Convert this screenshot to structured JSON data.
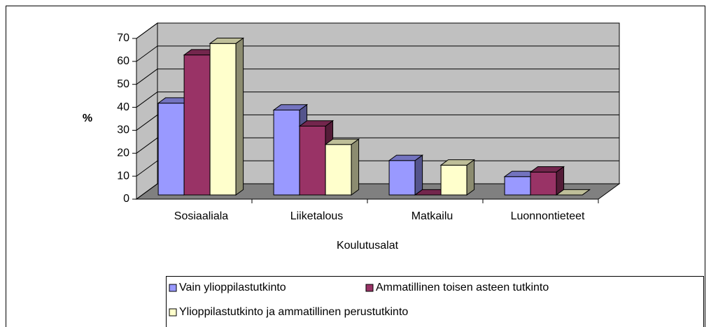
{
  "chart_data": {
    "type": "bar",
    "xlabel": "Koulutusalat",
    "ylabel": "%",
    "categories": [
      "Sosiaaliala",
      "Liiketalous",
      "Matkailu",
      "Luonnontieteet"
    ],
    "series": [
      {
        "name": "Vain ylioppilastutkinto",
        "color": "#9999ff",
        "values": [
          40,
          37,
          15,
          8
        ]
      },
      {
        "name": "Ammatillinen toisen asteen tutkinto",
        "color": "#993366",
        "values": [
          61,
          30,
          0,
          10
        ]
      },
      {
        "name": "Ylioppilastutkinto ja ammatillinen perustutkinto",
        "color": "#ffffcc",
        "values": [
          66,
          22,
          13,
          0
        ]
      }
    ],
    "ylim": [
      0,
      70
    ],
    "yticks": [
      0,
      10,
      20,
      30,
      40,
      50,
      60,
      70
    ],
    "grid": true,
    "legend": "bottom"
  }
}
